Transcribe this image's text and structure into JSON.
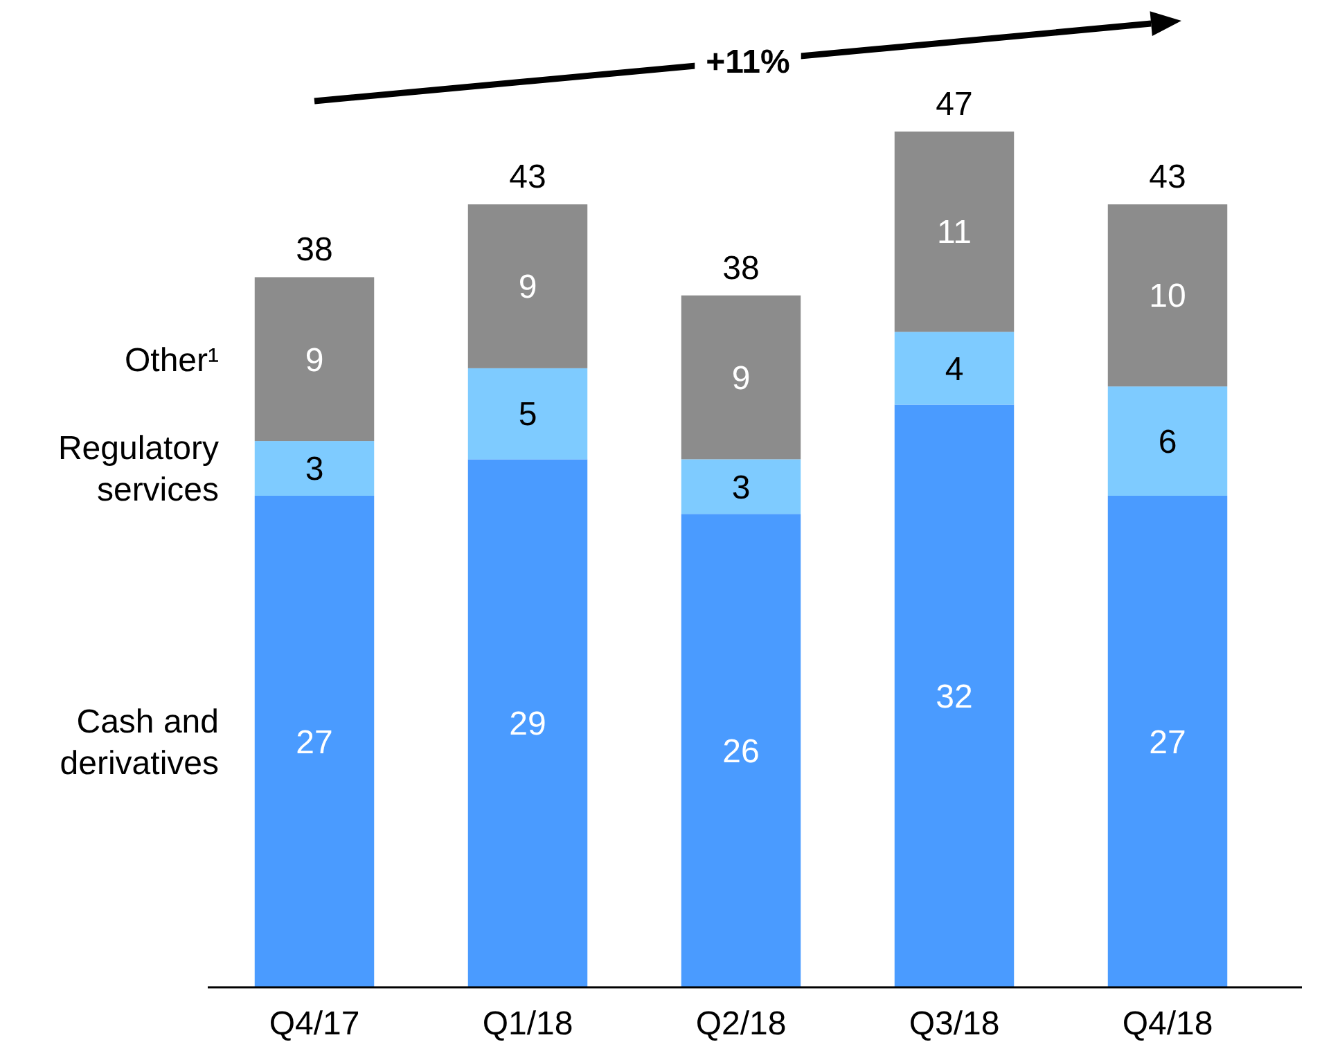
{
  "chart_data": {
    "type": "bar",
    "stacked": true,
    "data_labels": true,
    "legend": false,
    "categories": [
      "Q4/17",
      "Q1/18",
      "Q2/18",
      "Q3/18",
      "Q4/18"
    ],
    "series": [
      {
        "name": "Cash and derivatives",
        "color": "#4a9bff",
        "values": [
          27,
          29,
          26,
          32,
          27
        ]
      },
      {
        "name": "Regulatory services",
        "color": "#7ecbff",
        "values": [
          3,
          5,
          3,
          4,
          6
        ]
      },
      {
        "name": "Other¹",
        "color": "#8c8c8c",
        "values": [
          9,
          9,
          9,
          11,
          10
        ]
      }
    ],
    "totals": [
      "38",
      "43",
      "38",
      "47",
      "43"
    ],
    "annotations": [
      "+11%"
    ]
  }
}
